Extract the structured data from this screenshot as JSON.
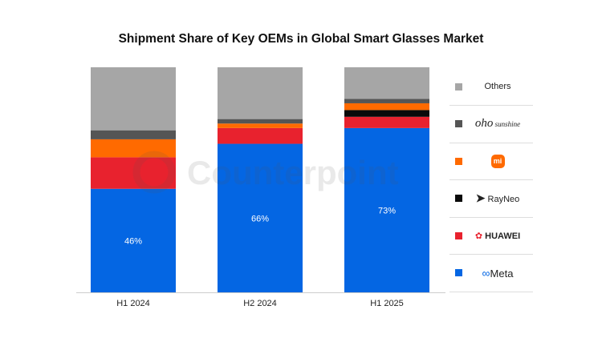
{
  "chart_data": {
    "type": "bar",
    "stacked": true,
    "title": "Shipment Share of Key OEMs in Global Smart Glasses Market",
    "categories": [
      "H1 2024",
      "H2 2024",
      "H1 2025"
    ],
    "ylim": [
      0,
      100
    ],
    "unit": "%",
    "grid": false,
    "legend_placement": "right",
    "series": [
      {
        "name": "Meta",
        "color": "#0466E3",
        "values": [
          46,
          66,
          73
        ],
        "labels": [
          "46%",
          "66%",
          "73%"
        ]
      },
      {
        "name": "HUAWEI",
        "color": "#E8222E",
        "values": [
          14,
          7,
          5
        ]
      },
      {
        "name": "RayNeo",
        "color": "#0A0A0A",
        "values": [
          0,
          0,
          3
        ]
      },
      {
        "name": "Xiaomi",
        "color": "#FF6A00",
        "values": [
          8,
          2,
          3
        ]
      },
      {
        "name": "oho sunshine",
        "color": "#555555",
        "values": [
          4,
          2,
          2
        ]
      },
      {
        "name": "Others",
        "color": "#A6A6A6",
        "values": [
          28,
          23,
          14
        ]
      }
    ],
    "legend": [
      "Others",
      "oho sunshine",
      "mi",
      "RayNeo",
      "HUAWEI",
      "Meta"
    ]
  },
  "watermark": "Counterpoint"
}
